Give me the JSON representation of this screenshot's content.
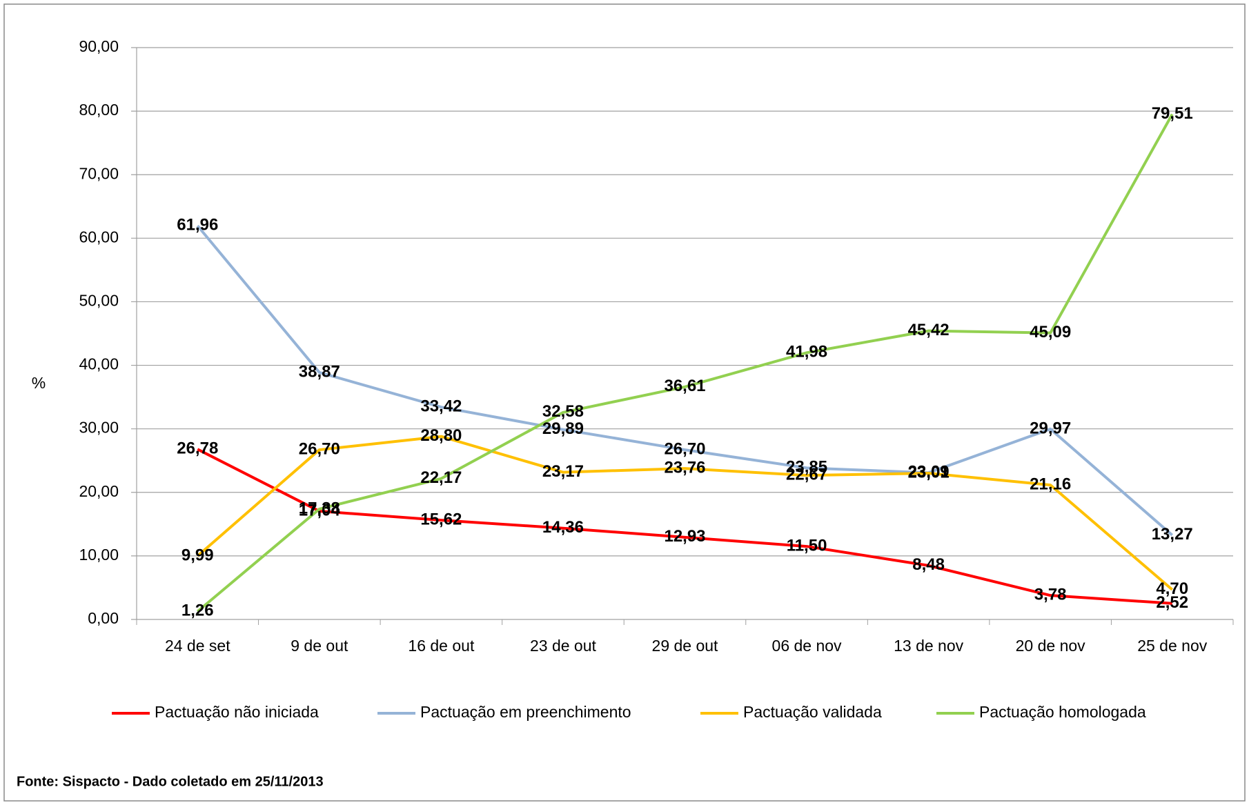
{
  "chart_data": {
    "type": "line",
    "y_label": "%",
    "categories": [
      "24 de set",
      "9 de out",
      "16 de out",
      "23 de out",
      "29 de out",
      "06 de nov",
      "13 de nov",
      "20 de nov",
      "25 de nov"
    ],
    "series": [
      {
        "name": "Pactuação não iniciada",
        "color": "#ff0000",
        "values": [
          26.78,
          17.04,
          15.62,
          14.36,
          12.93,
          11.5,
          8.48,
          3.78,
          2.52
        ],
        "value_labels": [
          "26,78",
          "17,04",
          "15,62",
          "14,36",
          "12,93",
          "11,50",
          "8,48",
          "3,78",
          "2,52"
        ]
      },
      {
        "name": "Pactuação em preenchimento",
        "color": "#95b3d7",
        "values": [
          61.96,
          38.87,
          33.42,
          29.89,
          26.7,
          23.85,
          23.09,
          29.97,
          13.27
        ],
        "value_labels": [
          "61,96",
          "38,87",
          "33,42",
          "29,89",
          "26,70",
          "23,85",
          "23,09",
          "29,97",
          "13,27"
        ]
      },
      {
        "name": "Pactuação validada",
        "color": "#ffc000",
        "values": [
          9.99,
          26.7,
          28.8,
          23.17,
          23.76,
          22.67,
          23.01,
          21.16,
          4.7
        ],
        "value_labels": [
          "9,99",
          "26,70",
          "28,80",
          "23,17",
          "23,76",
          "22,67",
          "23,01",
          "21,16",
          "4,70"
        ]
      },
      {
        "name": "Pactuação homologada",
        "color": "#92d050",
        "values": [
          1.26,
          17.38,
          22.17,
          32.58,
          36.61,
          41.98,
          45.42,
          45.09,
          79.51
        ],
        "value_labels": [
          "1,26",
          "17,38",
          "22,17",
          "32,58",
          "36,61",
          "41,98",
          "45,42",
          "45,09",
          "79,51"
        ]
      }
    ],
    "ylim": [
      0,
      90
    ],
    "yticks": [
      {
        "value": 0,
        "label": "0,00"
      },
      {
        "value": 10,
        "label": "10,00"
      },
      {
        "value": 20,
        "label": "20,00"
      },
      {
        "value": 30,
        "label": "30,00"
      },
      {
        "value": 40,
        "label": "40,00"
      },
      {
        "value": 50,
        "label": "50,00"
      },
      {
        "value": 60,
        "label": "60,00"
      },
      {
        "value": 70,
        "label": "70,00"
      },
      {
        "value": 80,
        "label": "80,00"
      },
      {
        "value": 90,
        "label": "90,00"
      }
    ],
    "grid": true,
    "legend": "bottom",
    "source": "Fonte: Sispacto - Dado coletado em 25/11/2013"
  }
}
